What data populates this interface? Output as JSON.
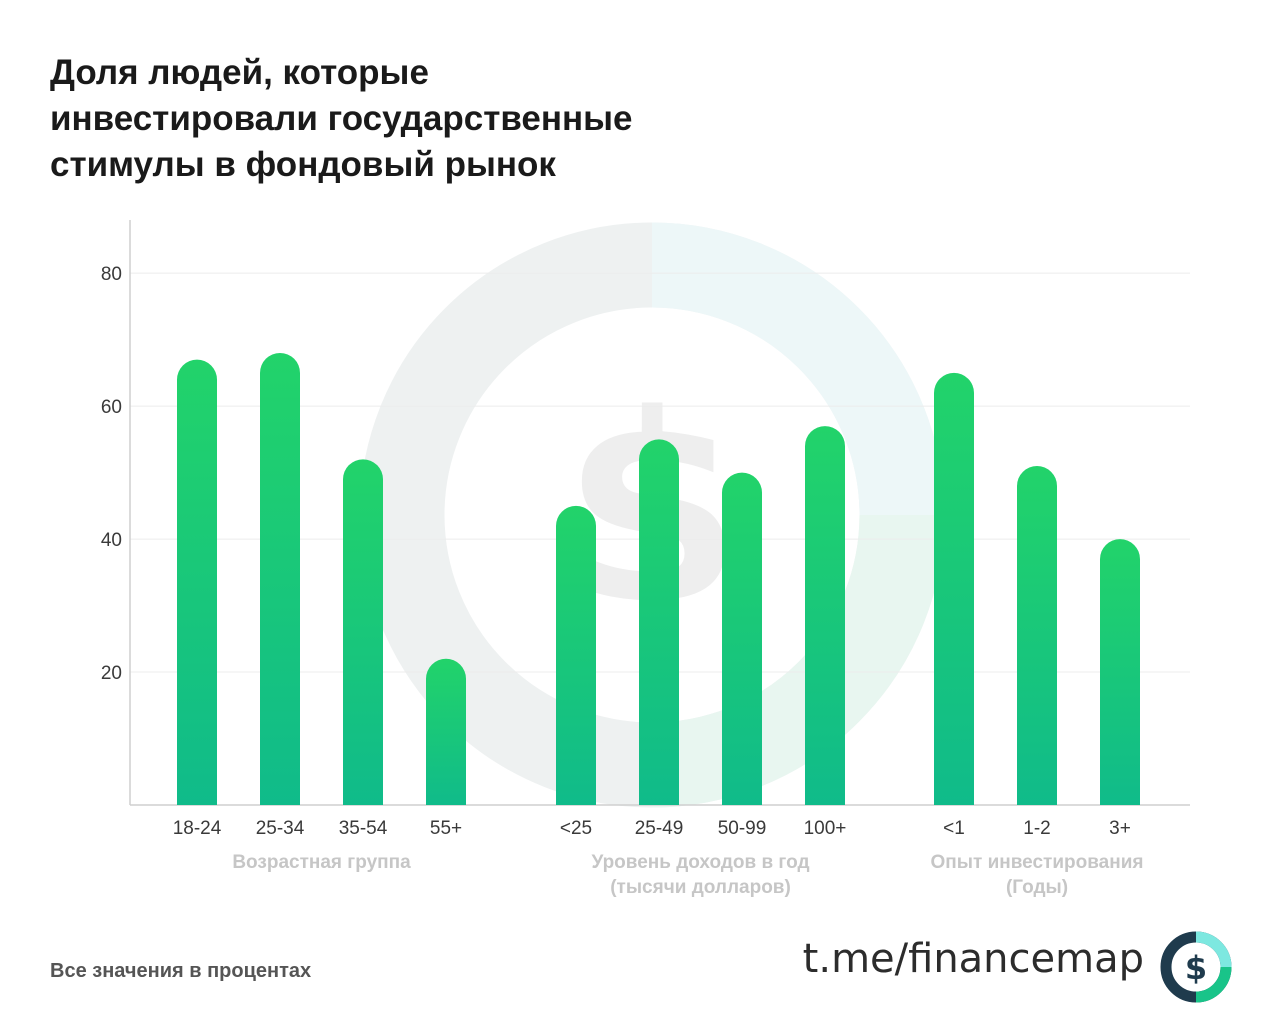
{
  "title_lines": [
    "Доля людей, которые",
    "инвестировали государственные",
    "стимулы в фондовый рынок"
  ],
  "footnote": "Все значения в процентах",
  "brand": "t.me/financemap",
  "logo_icon": "dollar-ring-icon",
  "colors": {
    "bar_top": "#22d36a",
    "bar_bottom": "#10bb8a",
    "axis": "#cfcfcf",
    "grid": "#ececec",
    "group_label": "#c6c6c6",
    "tick_label": "#3a3a3a"
  },
  "chart_data": {
    "type": "bar",
    "ylim": [
      0,
      88
    ],
    "yticks": [
      20,
      40,
      60,
      80
    ],
    "grid": true,
    "groups": [
      {
        "label_lines": [
          "Возрастная группа"
        ],
        "categories": [
          "18-24",
          "25-34",
          "35-54",
          "55+"
        ],
        "values": [
          67,
          68,
          52,
          22
        ]
      },
      {
        "label_lines": [
          "Уровень доходов в год",
          "(тысячи долларов)"
        ],
        "categories": [
          "<25",
          "25-49",
          "50-99",
          "100+"
        ],
        "values": [
          45,
          55,
          50,
          57
        ]
      },
      {
        "label_lines": [
          "Опыт инвестирования",
          "(Годы)"
        ],
        "categories": [
          "<1",
          "1-2",
          "3+"
        ],
        "values": [
          65,
          51,
          40
        ]
      }
    ]
  }
}
